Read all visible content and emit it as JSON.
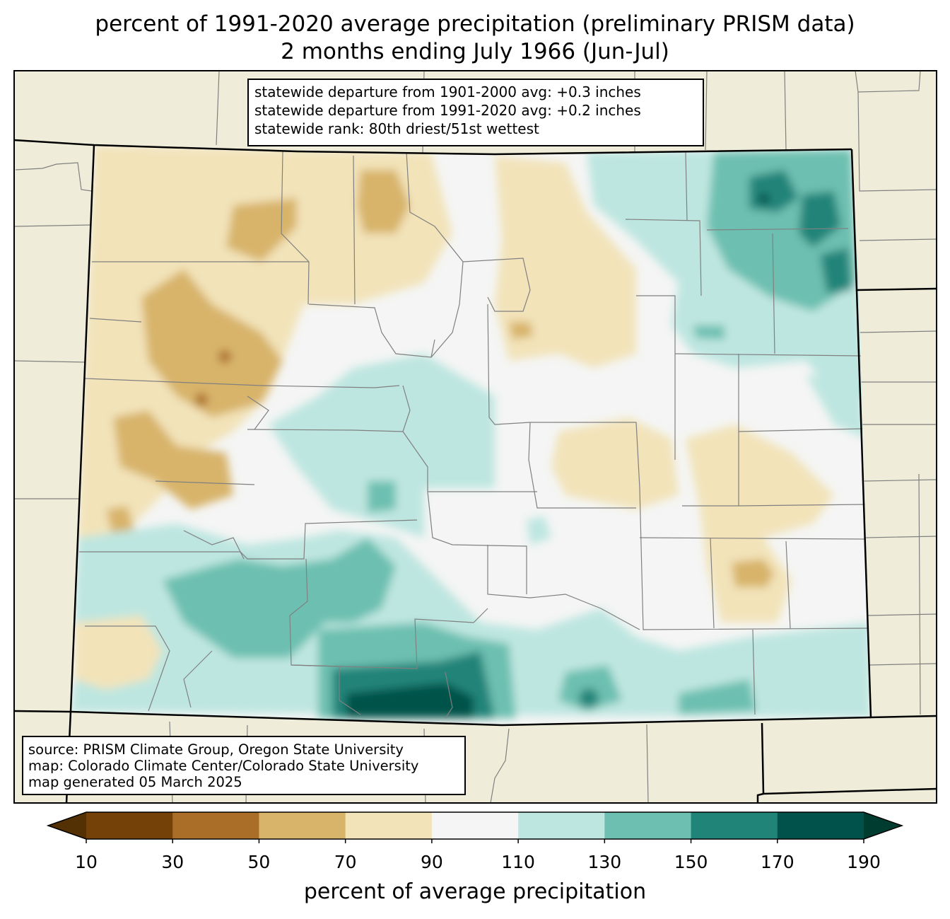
{
  "title": {
    "line1": "percent of 1991-2020 average precipitation (preliminary PRISM data)",
    "line2": "2 months ending July 1966 (Jun-Jul)"
  },
  "stats": {
    "line1": "statewide departure from 1901-2000 avg: +0.3 inches",
    "line2": "statewide departure from 1991-2020 avg: +0.2 inches",
    "line3": "statewide rank: 80th driest/51st wettest"
  },
  "source": {
    "line1": "source: PRISM Climate Group, Oregon State University",
    "line2": "map: Colorado Climate Center/Colorado State University",
    "line3": "map generated 05 March 2025"
  },
  "colorbar": {
    "label": "percent of average precipitation",
    "ticks": [
      "10",
      "30",
      "50",
      "70",
      "90",
      "110",
      "130",
      "150",
      "170",
      "190"
    ],
    "colors": [
      "#744109",
      "#ab6e28",
      "#d8b46b",
      "#f2e3b9",
      "#f4f5f4",
      "#bee6e0",
      "#6dc0b1",
      "#218479",
      "#00524a"
    ],
    "under_color": "#543005",
    "over_color": "#003c30"
  },
  "colors": {
    "background_land": "#efedd9",
    "state_fill": "#f4f5f4",
    "border": "#000000",
    "county_line": "#808080"
  }
}
